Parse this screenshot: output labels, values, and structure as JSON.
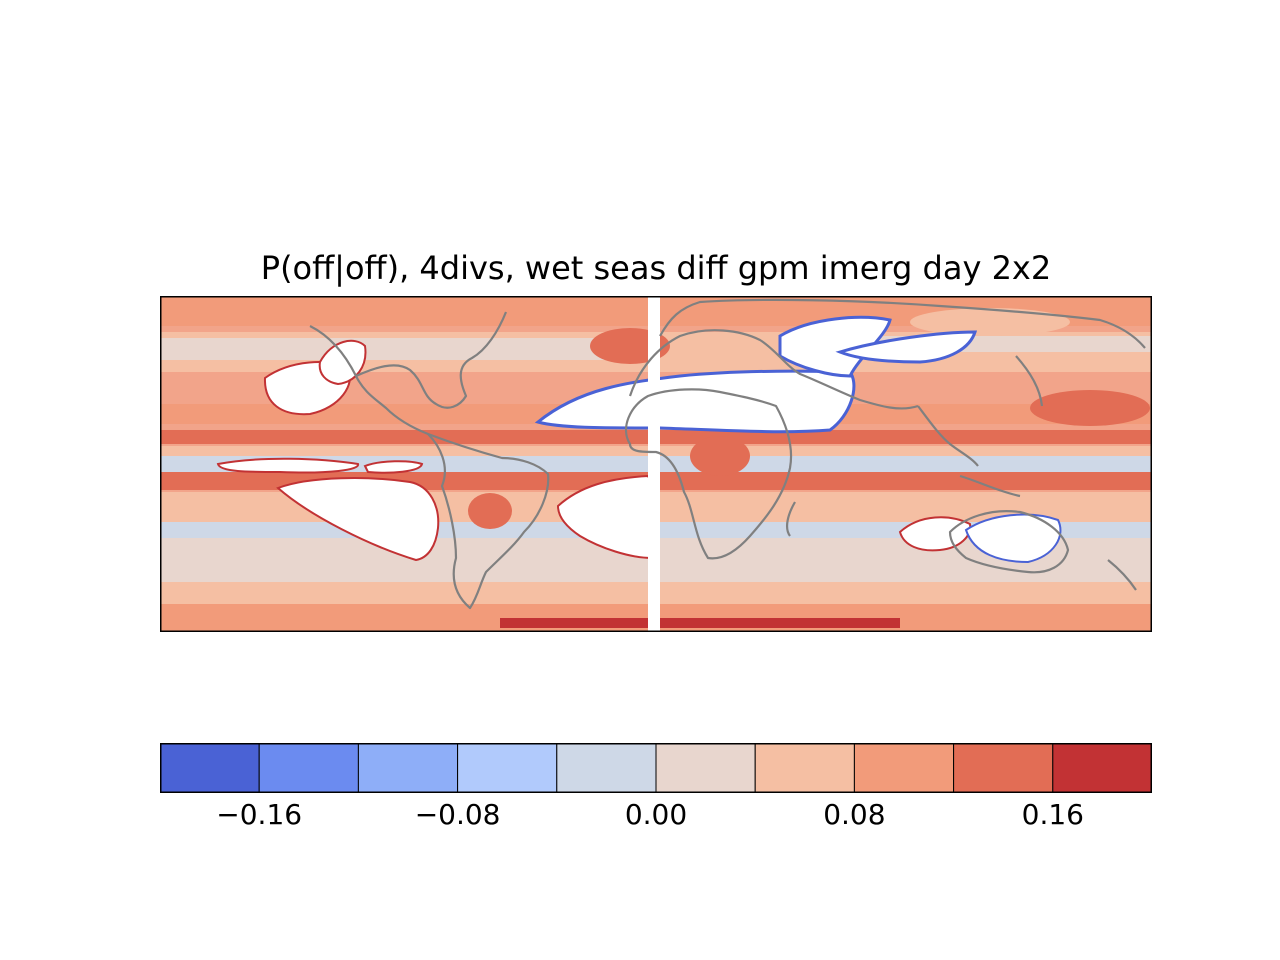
{
  "title": "P(off|off), 4divs, wet seas diff gpm imerg day 2x2",
  "colorbar": {
    "ticks": [
      "−0.16",
      "−0.08",
      "0.00",
      "0.08",
      "0.16"
    ],
    "tick_values": [
      -0.16,
      -0.08,
      0.0,
      0.08,
      0.16
    ],
    "vmin": -0.2,
    "vmax": 0.2,
    "levels": [
      -0.2,
      -0.16,
      -0.12,
      -0.08,
      -0.04,
      0.0,
      0.04,
      0.08,
      0.12,
      0.16,
      0.2
    ],
    "colors": [
      "#4a62d5",
      "#6b8bf0",
      "#8eaef8",
      "#b1cafc",
      "#ced8e7",
      "#e8d6ce",
      "#f5bfa3",
      "#f29b7a",
      "#e26d55",
      "#c23234"
    ]
  },
  "map": {
    "projection": "plate-carree",
    "field_palette": {
      "neutral": "#e8d6ce",
      "light_warm": "#f5bfa3",
      "warm": "#f29b7a",
      "strong_warm": "#e26d55",
      "hot": "#c23234",
      "light_cool": "#ced8e7",
      "cool": "#b1cafc",
      "masked": "#ffffff"
    },
    "coastline_color": "#808080"
  }
}
